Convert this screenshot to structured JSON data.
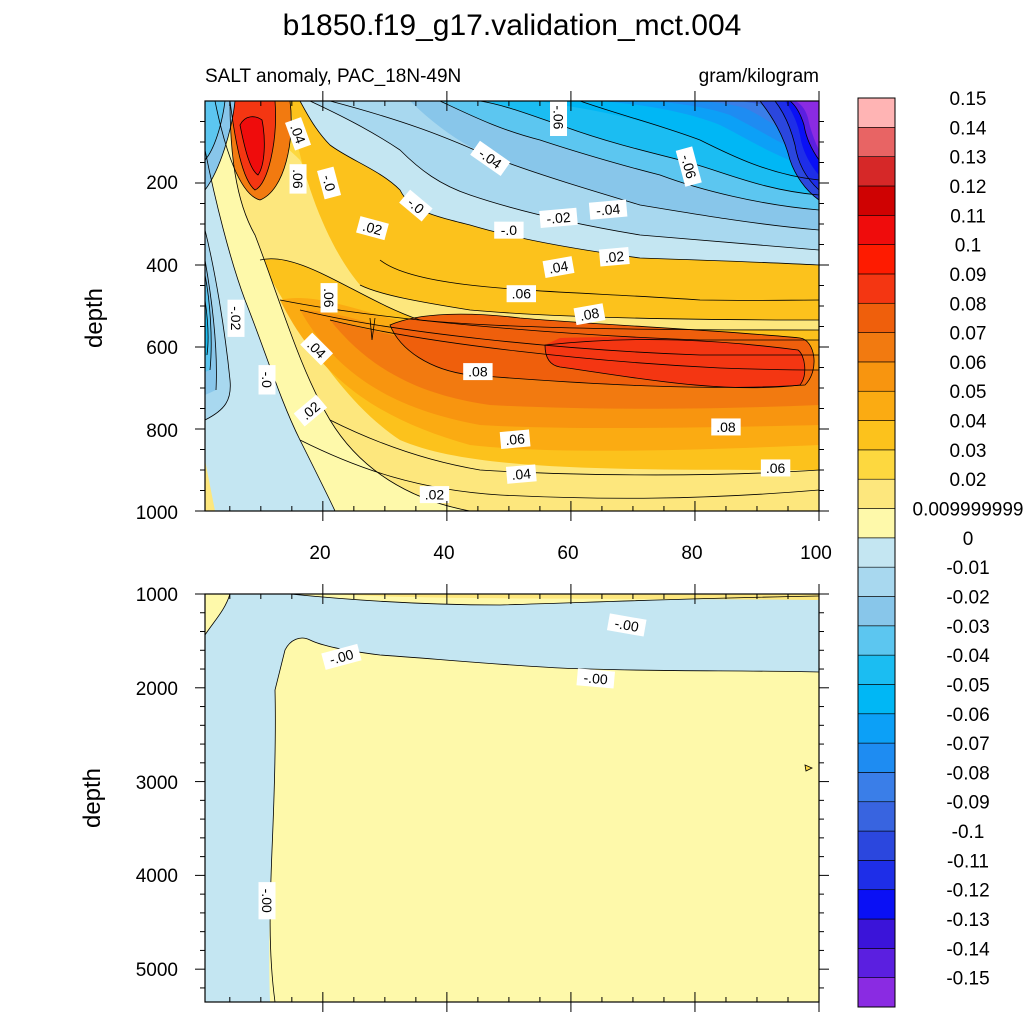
{
  "chart_data": {
    "type": "heatmap",
    "title": "b1850.f19_g17.validation_mct.004",
    "panels": [
      {
        "id": "upper",
        "left_title": "SALT anomaly, PAC_18N-49N",
        "right_title": "gram/kilogram",
        "ylabel": "depth",
        "xlim": [
          1,
          100
        ],
        "ylim": [
          1000,
          0
        ],
        "x_ticks": [
          "20",
          "40",
          "60",
          "80",
          "100"
        ],
        "y_ticks": [
          "200",
          "400",
          "600",
          "800",
          "1000"
        ],
        "contour_labels": [
          {
            "text": ".04",
            "x": 16,
            "d": 80,
            "rot": 70
          },
          {
            "text": ".06",
            "x": 16,
            "d": 190,
            "rot": 90
          },
          {
            "text": "-.0",
            "x": 21,
            "d": 200,
            "rot": 75
          },
          {
            "text": "-.0",
            "x": 35,
            "d": 255,
            "rot": 40
          },
          {
            "text": ".02",
            "x": 28,
            "d": 310,
            "rot": 15
          },
          {
            "text": "-.04",
            "x": 47,
            "d": 140,
            "rot": 35
          },
          {
            "text": "-.06",
            "x": 58,
            "d": 40,
            "rot": 90
          },
          {
            "text": "-.06",
            "x": 79,
            "d": 160,
            "rot": 75
          },
          {
            "text": "-.02",
            "x": 58,
            "d": 285,
            "rot": -5
          },
          {
            "text": "-.04",
            "x": 66,
            "d": 265,
            "rot": -5
          },
          {
            "text": "-.0",
            "x": 50,
            "d": 315,
            "rot": 0
          },
          {
            "text": ".04",
            "x": 58,
            "d": 405,
            "rot": -10
          },
          {
            "text": ".02",
            "x": 67,
            "d": 380,
            "rot": -5
          },
          {
            "text": ".06",
            "x": 52,
            "d": 470,
            "rot": 0
          },
          {
            "text": ".06",
            "x": 21,
            "d": 480,
            "rot": 90
          },
          {
            "text": ".08",
            "x": 63,
            "d": 520,
            "rot": -10
          },
          {
            "text": "-.02",
            "x": 6,
            "d": 530,
            "rot": 90
          },
          {
            "text": ".04",
            "x": 19,
            "d": 605,
            "rot": 45
          },
          {
            "text": "-.0",
            "x": 11,
            "d": 680,
            "rot": 90
          },
          {
            "text": ".08",
            "x": 45,
            "d": 660,
            "rot": 0
          },
          {
            "text": ".02",
            "x": 18,
            "d": 755,
            "rot": -40
          },
          {
            "text": ".08",
            "x": 85,
            "d": 795,
            "rot": 0
          },
          {
            "text": ".06",
            "x": 51,
            "d": 825,
            "rot": -5
          },
          {
            "text": ".04",
            "x": 52,
            "d": 910,
            "rot": -5
          },
          {
            "text": ".06",
            "x": 93,
            "d": 895,
            "rot": 0
          },
          {
            "text": ".02",
            "x": 38,
            "d": 960,
            "rot": 0
          }
        ]
      },
      {
        "id": "lower",
        "ylabel": "depth",
        "xlim": [
          1,
          100
        ],
        "ylim": [
          5350,
          1000
        ],
        "y_ticks": [
          "1000",
          "2000",
          "3000",
          "4000",
          "5000"
        ],
        "contour_labels": [
          {
            "text": "-.00",
            "x": 69,
            "d": 1330,
            "rot": 10
          },
          {
            "text": "-.00",
            "x": 23,
            "d": 1670,
            "rot": -15
          },
          {
            "text": "-.00",
            "x": 64,
            "d": 1900,
            "rot": 5
          },
          {
            "text": "-.00",
            "x": 11,
            "d": 4270,
            "rot": 90
          }
        ]
      }
    ],
    "colorbar": {
      "colors": [
        "#8a2be2",
        "#5b1fe0",
        "#3b14d9",
        "#0a10f5",
        "#1e2ee8",
        "#2b47de",
        "#3864e0",
        "#3a7ee8",
        "#1e8cf2",
        "#0ca0f7",
        "#00b7f5",
        "#1bbdf2",
        "#5cc6f0",
        "#88c6ea",
        "#a8d8ef",
        "#c4e6f2",
        "#fef9aa",
        "#fde77d",
        "#fdd83f",
        "#fcc21c",
        "#fbab12",
        "#f8950f",
        "#f27a10",
        "#ef5f0c",
        "#f43612",
        "#fe1b00",
        "#ef0c0c",
        "#cf0202",
        "#d62828",
        "#e86464",
        "#ffb4b4"
      ],
      "labels": [
        "-0.15",
        "-0.14",
        "-0.13",
        "-0.12",
        "-0.11",
        "-0.1",
        "-0.09",
        "-0.08",
        "-0.07",
        "-0.06",
        "-0.05",
        "-0.04",
        "-0.03",
        "-0.02",
        "-0.01",
        "0",
        "0.009999999",
        "0.02",
        "0.03",
        "0.04",
        "0.05",
        "0.06",
        "0.07",
        "0.08",
        "0.09",
        "0.1",
        "0.11",
        "0.12",
        "0.13",
        "0.14",
        "0.15"
      ]
    }
  }
}
